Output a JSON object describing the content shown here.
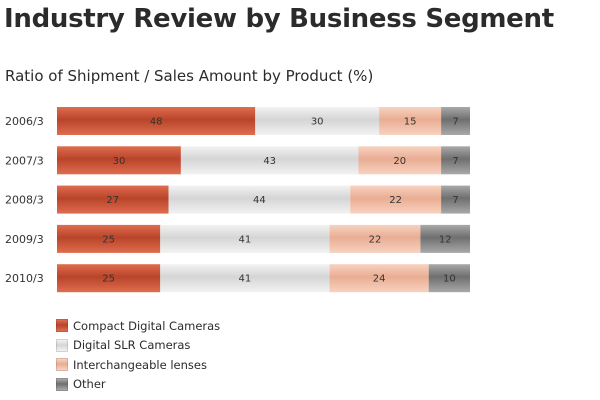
{
  "page_title": "Industry Review by Business Segment",
  "chart_data": {
    "type": "bar",
    "orientation": "horizontal",
    "stacked": true,
    "title": "Ratio of Shipment / Sales Amount by Product (%)",
    "categories": [
      "2006/3",
      "2007/3",
      "2008/3",
      "2009/3",
      "2010/3"
    ],
    "series": [
      {
        "name": "Compact Digital Cameras",
        "values": [
          48,
          30,
          27,
          25,
          25
        ],
        "colors": [
          "#b8442a",
          "#e06d4e"
        ]
      },
      {
        "name": "Digital SLR Cameras",
        "values": [
          30,
          43,
          44,
          41,
          41
        ],
        "colors": [
          "#d5d5d5",
          "#f2f2f2"
        ]
      },
      {
        "name": "Interchangeable lenses",
        "values": [
          15,
          20,
          22,
          22,
          24
        ],
        "colors": [
          "#e9ad93",
          "#f7d2c0"
        ]
      },
      {
        "name": "Other",
        "values": [
          7,
          7,
          7,
          12,
          10
        ],
        "colors": [
          "#6f6f6f",
          "#a9a9a9"
        ]
      }
    ],
    "xlim": [
      0,
      100
    ],
    "grid": false,
    "legend_position": "bottom-left"
  }
}
